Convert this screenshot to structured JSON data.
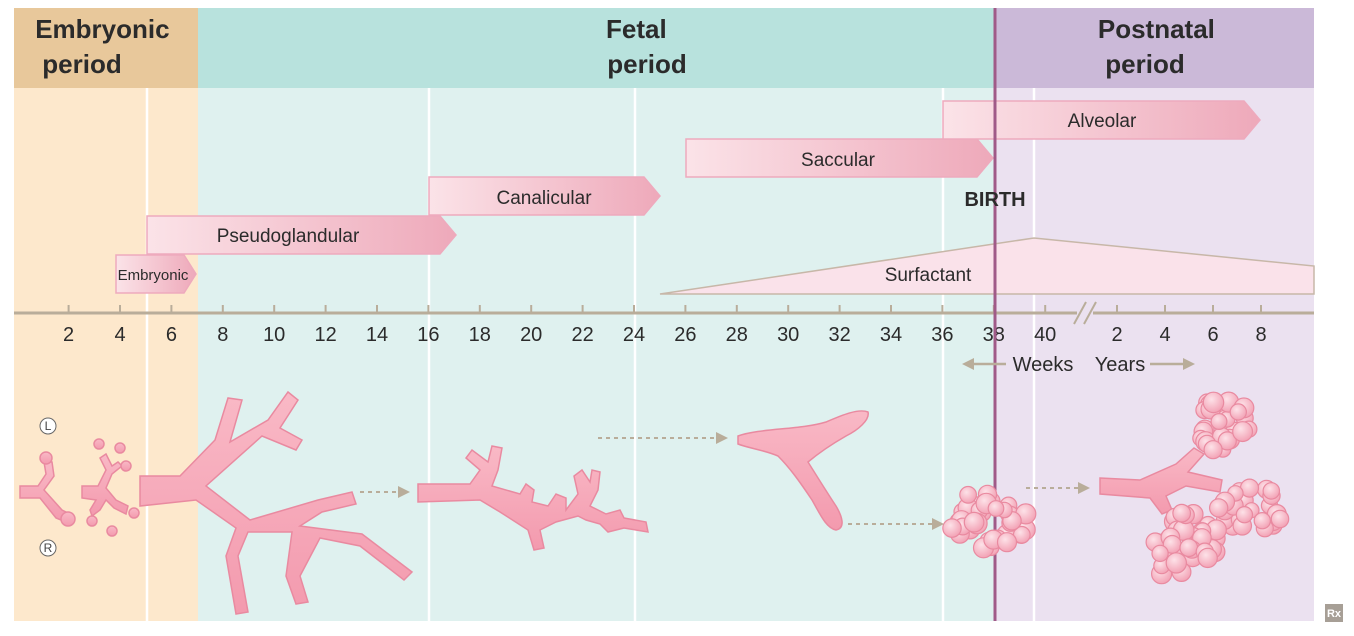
{
  "periods": {
    "embryonic": "Embryonic\nperiod",
    "fetal": "Fetal\nperiod",
    "postnatal": "Postnatal\nperiod"
  },
  "stages": {
    "embryonic": "Embryonic",
    "pseudoglandular": "Pseudoglandular",
    "canalicular": "Canalicular",
    "saccular": "Saccular",
    "alveolar": "Alveolar"
  },
  "surfactant_label": "Surfactant",
  "birth_label": "BIRTH",
  "week_ticks": [
    "2",
    "4",
    "6",
    "8",
    "10",
    "12",
    "14",
    "16",
    "18",
    "20",
    "22",
    "24",
    "26",
    "28",
    "30",
    "32",
    "34",
    "36",
    "38",
    "40"
  ],
  "year_ticks": [
    "2",
    "4",
    "6",
    "8"
  ],
  "units": {
    "weeks": "Weeks",
    "years": "Years"
  },
  "side_markers": {
    "left": "L",
    "right": "R"
  },
  "corner_badge": "Rx",
  "colors": {
    "embryonic_bg": "#fde8cc",
    "embryonic_header": "#e8c89b",
    "fetal_bg": "#dff1ef",
    "fetal_header": "#b8e2dd",
    "postnatal_bg": "#ebe1f0",
    "postnatal_header": "#cbb9d8",
    "birth_line": "#a05a88",
    "stage_arrow": "#f2c0cb",
    "lung_tissue": "#f7a8b8",
    "axis": "#b9ad9a"
  }
}
